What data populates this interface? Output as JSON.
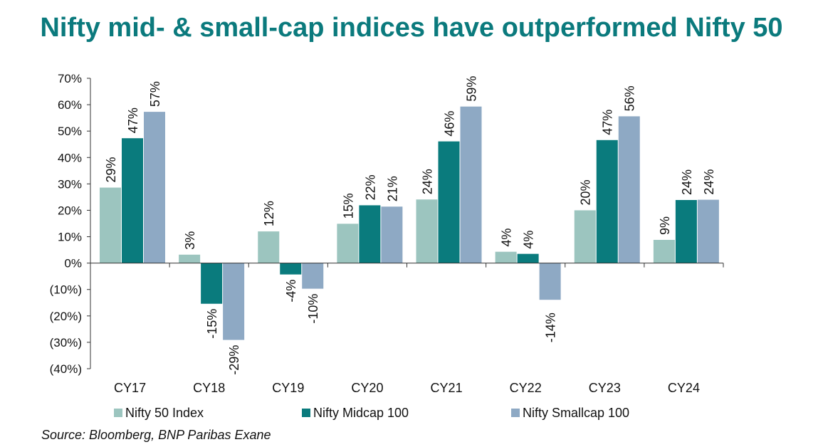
{
  "title": "Nifty mid- & small-cap indices have outperformed Nifty 50",
  "source": "Source: Bloomberg, BNP Paribas Exane",
  "chart_data": {
    "type": "bar",
    "title": "Nifty mid- & small-cap indices have outperformed Nifty 50",
    "xlabel": "",
    "ylabel": "",
    "ylim": [
      -40,
      70
    ],
    "y_ticks": [
      70,
      60,
      50,
      40,
      30,
      20,
      10,
      0,
      -10,
      -20,
      -30,
      -40
    ],
    "y_tick_labels": [
      "70%",
      "60%",
      "50%",
      "40%",
      "30%",
      "20%",
      "10%",
      "0%",
      "(10%)",
      "(20%)",
      "(30%)",
      "(40%)"
    ],
    "categories": [
      "CY17",
      "CY18",
      "CY19",
      "CY20",
      "CY21",
      "CY22",
      "CY23",
      "CY24"
    ],
    "series": [
      {
        "name": "Nifty 50 Index",
        "color": "#9cc5bf",
        "values": [
          28.6,
          3.2,
          12.0,
          14.9,
          24.1,
          4.3,
          20.0,
          8.8
        ],
        "labels": [
          "29%",
          "3%",
          "12%",
          "15%",
          "24%",
          "4%",
          "20%",
          "9%"
        ]
      },
      {
        "name": "Nifty Midcap 100",
        "color": "#0a7b7d",
        "values": [
          47.3,
          -15.4,
          -4.3,
          21.9,
          46.1,
          3.5,
          46.6,
          23.9
        ],
        "labels": [
          "47%",
          "-15%",
          "-4%",
          "22%",
          "46%",
          "4%",
          "47%",
          "24%"
        ]
      },
      {
        "name": "Nifty Smallcap 100",
        "color": "#8ea9c4",
        "values": [
          57.3,
          -29.1,
          -9.7,
          21.4,
          59.3,
          -13.9,
          55.6,
          24.0
        ],
        "labels": [
          "57%",
          "-29%",
          "-10%",
          "21%",
          "59%",
          "",
          "56%",
          "24%"
        ]
      }
    ],
    "annotations": [
      {
        "text": "-14%",
        "category": "CY22",
        "series": "Nifty Smallcap 100"
      }
    ],
    "legend": "bottom",
    "grid": false
  }
}
